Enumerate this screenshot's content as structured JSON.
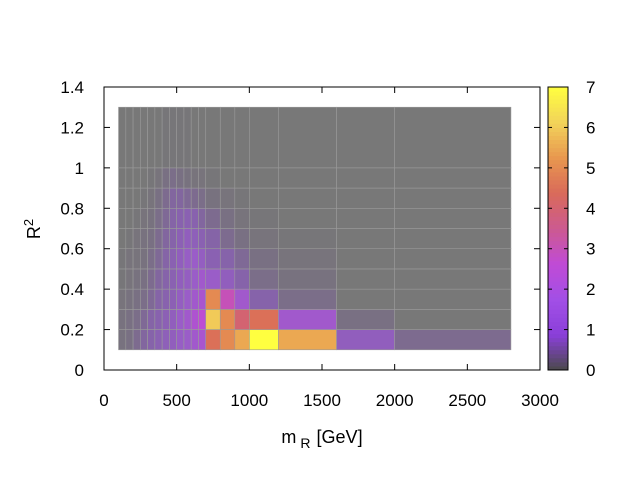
{
  "chart_data": {
    "type": "heatmap",
    "title": "",
    "xlabel": "m",
    "xlabel_sub": "R",
    "xlabel_unit": "[GeV]",
    "ylabel": "R",
    "ylabel_sup": "2",
    "xlim": [
      0,
      3000
    ],
    "ylim": [
      0,
      1.4
    ],
    "xticks": [
      "0",
      "500",
      "1000",
      "1500",
      "2000",
      "2500",
      "3000"
    ],
    "yticks": [
      "0",
      "0.2",
      "0.4",
      "0.6",
      "0.8",
      "1",
      "1.2",
      "1.4"
    ],
    "colorbar": {
      "range": [
        0,
        7
      ],
      "ticks": [
        "0",
        "1",
        "2",
        "3",
        "4",
        "5",
        "6",
        "7"
      ],
      "palette": [
        "#4a4a4a",
        "#8a3fd9",
        "#a24fe6",
        "#c04bd6",
        "#cc5a90",
        "#d96a5a",
        "#e8974f",
        "#f2d35a",
        "#ffff40"
      ]
    },
    "background_color": "#808080",
    "x_edges": [
      100,
      150,
      200,
      250,
      300,
      350,
      400,
      450,
      500,
      550,
      600,
      650,
      700,
      800,
      900,
      1000,
      1200,
      1600,
      2000,
      2800
    ],
    "y_edges": [
      0.1,
      0.2,
      0.3,
      0.4,
      0.5,
      0.6,
      0.7,
      0.8,
      0.9,
      1.0,
      1.3
    ],
    "z": [
      [
        0.3,
        0.4,
        0.6,
        0.8,
        1.0,
        1.2,
        1.4,
        1.5,
        1.7,
        1.8,
        2.0,
        2.2,
        4.5,
        5.0,
        5.5,
        7.0,
        5.5,
        1.5,
        0.6
      ],
      [
        0.3,
        0.4,
        0.5,
        0.7,
        0.9,
        1.1,
        1.3,
        1.5,
        1.8,
        2.0,
        2.3,
        2.6,
        6.0,
        5.0,
        4.0,
        4.5,
        2.0,
        0.4,
        0.0
      ],
      [
        0.2,
        0.3,
        0.4,
        0.5,
        0.7,
        0.9,
        1.1,
        1.3,
        1.6,
        1.8,
        2.0,
        2.2,
        5.0,
        3.0,
        2.0,
        1.0,
        0.5,
        0.0,
        0.0
      ],
      [
        0.1,
        0.2,
        0.3,
        0.4,
        0.6,
        0.8,
        1.0,
        1.2,
        1.5,
        1.6,
        1.8,
        2.0,
        1.8,
        1.5,
        1.0,
        0.5,
        0.3,
        0.0,
        0.0
      ],
      [
        0.1,
        0.2,
        0.2,
        0.3,
        0.5,
        0.7,
        0.9,
        1.2,
        1.5,
        1.7,
        1.8,
        1.6,
        1.2,
        1.0,
        0.7,
        0.4,
        0.2,
        0.0,
        0.0
      ],
      [
        0.0,
        0.1,
        0.2,
        0.3,
        0.4,
        0.6,
        0.8,
        1.0,
        1.3,
        1.5,
        1.4,
        1.2,
        0.9,
        0.6,
        0.4,
        0.2,
        0.1,
        0.0,
        0.0
      ],
      [
        0.0,
        0.0,
        0.1,
        0.2,
        0.3,
        0.5,
        0.7,
        0.9,
        1.1,
        1.2,
        1.1,
        0.8,
        0.6,
        0.4,
        0.2,
        0.1,
        0.0,
        0.0,
        0.0
      ],
      [
        0.0,
        0.0,
        0.0,
        0.1,
        0.2,
        0.4,
        0.6,
        0.8,
        0.8,
        0.7,
        0.6,
        0.5,
        0.3,
        0.2,
        0.1,
        0.0,
        0.0,
        0.0,
        0.0
      ],
      [
        0.0,
        0.0,
        0.0,
        0.0,
        0.1,
        0.2,
        0.4,
        0.5,
        0.4,
        0.3,
        0.2,
        0.2,
        0.1,
        0.0,
        0.0,
        0.0,
        0.0,
        0.0,
        0.0
      ],
      [
        0.0,
        0.0,
        0.0,
        0.0,
        0.0,
        0.0,
        0.1,
        0.1,
        0.1,
        0.1,
        0.0,
        0.0,
        0.0,
        0.0,
        0.0,
        0.0,
        0.0,
        0.0,
        0.0
      ]
    ]
  }
}
